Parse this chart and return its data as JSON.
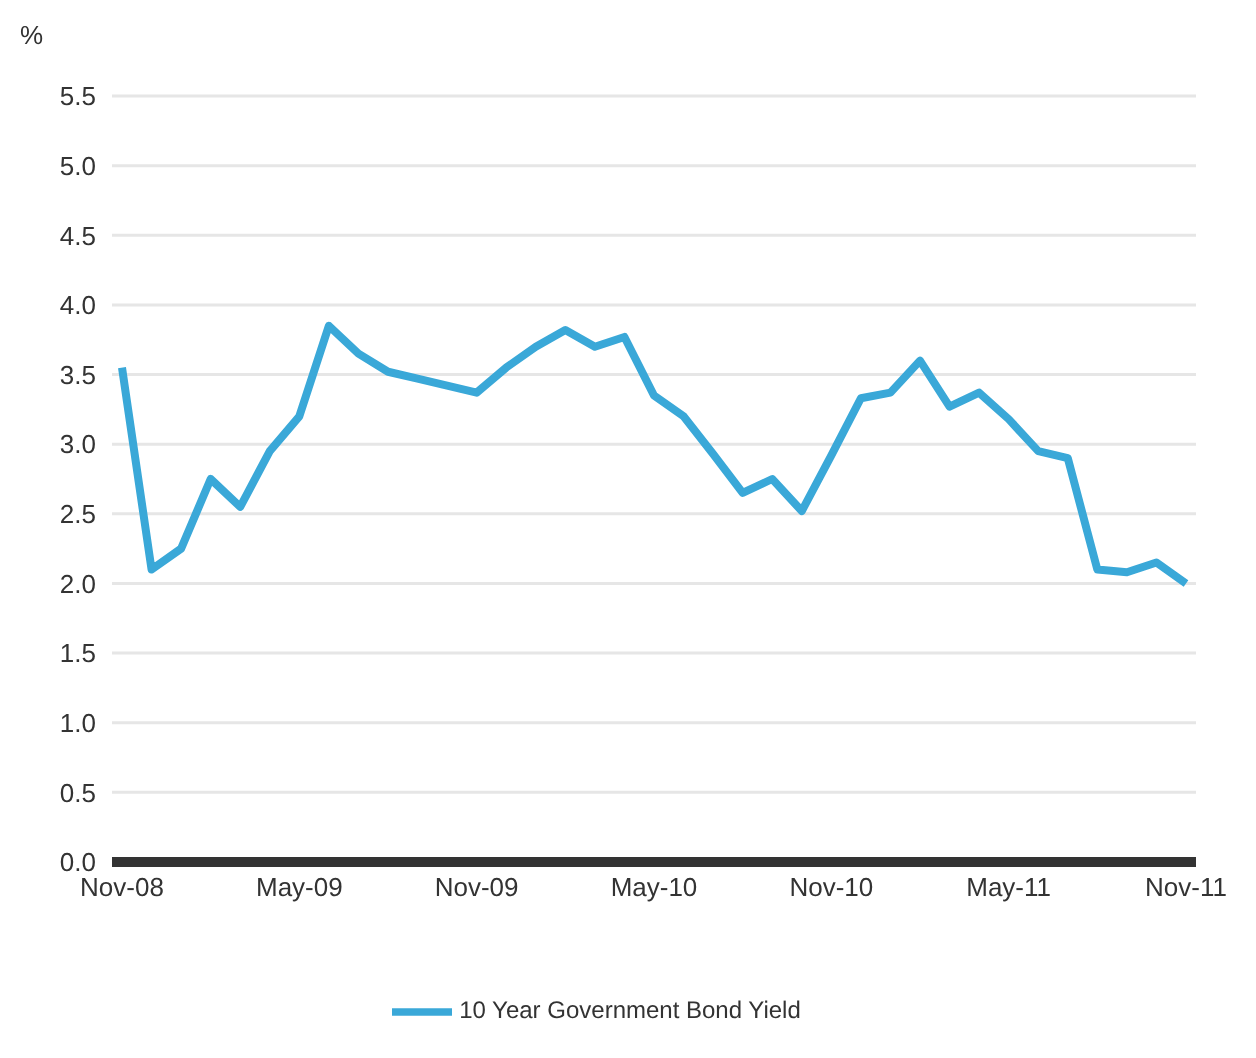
{
  "chart_data": {
    "type": "line",
    "ylabel": "%",
    "categories": [
      "Nov-08",
      null,
      null,
      null,
      null,
      null,
      "May-09",
      null,
      null,
      null,
      null,
      null,
      "Nov-09",
      null,
      null,
      null,
      null,
      null,
      "May-10",
      null,
      null,
      null,
      null,
      null,
      "Nov-10",
      null,
      null,
      null,
      null,
      null,
      "May-11",
      null,
      null,
      null,
      null,
      null,
      "Nov-11"
    ],
    "series": [
      {
        "name": "10 Year Government Bond Yield",
        "color": "#3aa8d8",
        "values": [
          3.55,
          2.1,
          2.25,
          2.75,
          2.55,
          2.95,
          3.2,
          3.85,
          3.65,
          3.52,
          3.47,
          3.42,
          3.37,
          3.55,
          3.7,
          3.82,
          3.7,
          3.77,
          3.35,
          3.2,
          2.93,
          2.65,
          2.75,
          2.52,
          2.92,
          3.33,
          3.37,
          3.6,
          3.27,
          3.37,
          3.18,
          2.95,
          2.9,
          2.1,
          2.08,
          2.15,
          2.0
        ]
      }
    ],
    "ylim": [
      0,
      5.5
    ],
    "yticks": [
      {
        "value": 0,
        "label": "0.0"
      },
      0.5,
      {
        "value": 1,
        "label": "1.0"
      },
      1.5,
      {
        "value": 2,
        "label": "2.0"
      },
      2.5,
      {
        "value": 3,
        "label": "3.0"
      },
      3.5,
      {
        "value": 4,
        "label": "4.0"
      },
      4.5,
      {
        "value": 5,
        "label": "5.0"
      },
      5.5
    ],
    "grid": "y",
    "legend": "bottom",
    "marker": "none",
    "line_style": "solid"
  }
}
